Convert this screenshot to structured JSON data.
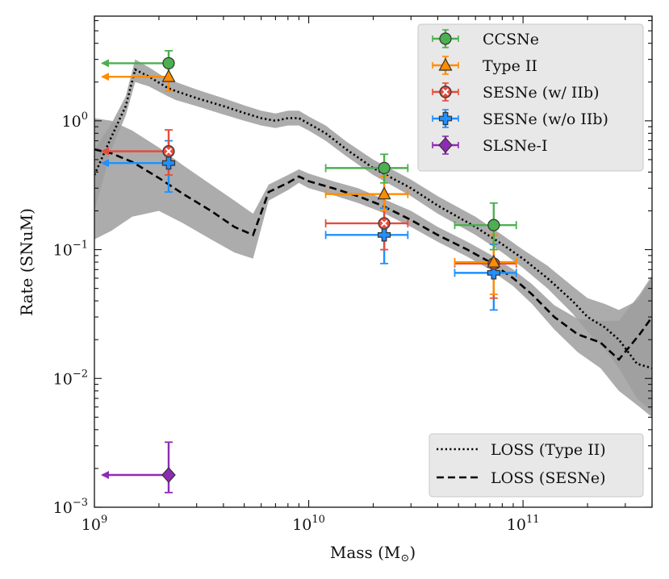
{
  "chart_data": {
    "type": "scatter",
    "xscale": "log",
    "yscale": "log",
    "xlim": [
      1000000000.0,
      400000000000.0
    ],
    "ylim": [
      0.001,
      6.5
    ],
    "xlabel": "Mass (M",
    "xlabel_sub": "⊙",
    "xlabel_end": ")",
    "ylabel": "Rate (SNuM)",
    "x_ticks": [
      {
        "value": 1000000000.0,
        "base": "10",
        "exp": "9"
      },
      {
        "value": 10000000000.0,
        "base": "10",
        "exp": "10"
      },
      {
        "value": 100000000000.0,
        "base": "10",
        "exp": "11"
      }
    ],
    "y_ticks": [
      {
        "value": 0.001,
        "base": "10",
        "exp": "−3"
      },
      {
        "value": 0.01,
        "base": "10",
        "exp": "−2"
      },
      {
        "value": 0.1,
        "base": "10",
        "exp": "−1"
      },
      {
        "value": 1,
        "base": "10",
        "exp": "0"
      }
    ],
    "series": [
      {
        "name": "CCSNe",
        "color": "#4caf50",
        "marker": "circle",
        "points": [
          {
            "x": 2220000000.0,
            "y": 2.8,
            "ylo": 2.2,
            "yhi": 3.5,
            "xlo": 1000000000.0,
            "xhi": 2220000000.0,
            "upper_limit_x": true
          },
          {
            "x": 22500000000.0,
            "y": 0.43,
            "ylo": 0.33,
            "yhi": 0.55,
            "xlo": 12000000000.0,
            "xhi": 29000000000.0
          },
          {
            "x": 73000000000.0,
            "y": 0.155,
            "ylo": 0.1,
            "yhi": 0.23,
            "xlo": 48000000000.0,
            "xhi": 93000000000.0
          }
        ]
      },
      {
        "name": "Type II",
        "color": "#ff8c00",
        "marker": "triangle",
        "points": [
          {
            "x": 2220000000.0,
            "y": 2.2,
            "ylo": 1.7,
            "yhi": 2.9,
            "xlo": 1000000000.0,
            "xhi": 2220000000.0,
            "upper_limit_x": true
          },
          {
            "x": 22500000000.0,
            "y": 0.27,
            "ylo": 0.2,
            "yhi": 0.37,
            "xlo": 12000000000.0,
            "xhi": 29000000000.0
          },
          {
            "x": 73000000000.0,
            "y": 0.08,
            "ylo": 0.045,
            "yhi": 0.13,
            "xlo": 48000000000.0,
            "xhi": 93000000000.0
          }
        ]
      },
      {
        "name": "SESNe (w/ IIb)",
        "color": "#e74c3c",
        "marker": "x",
        "points": [
          {
            "x": 2220000000.0,
            "y": 0.58,
            "ylo": 0.38,
            "yhi": 0.85,
            "xlo": 1000000000.0,
            "xhi": 2220000000.0,
            "upper_limit_x": true
          },
          {
            "x": 22500000000.0,
            "y": 0.16,
            "ylo": 0.1,
            "yhi": 0.25,
            "xlo": 12000000000.0,
            "xhi": 29000000000.0
          },
          {
            "x": 73000000000.0,
            "y": 0.078,
            "ylo": 0.042,
            "yhi": 0.13,
            "xlo": 48000000000.0,
            "xhi": 93000000000.0
          }
        ]
      },
      {
        "name": "SESNe (w/o IIb)",
        "color": "#1e90ff",
        "marker": "plus",
        "points": [
          {
            "x": 2220000000.0,
            "y": 0.47,
            "ylo": 0.28,
            "yhi": 0.7,
            "xlo": 1000000000.0,
            "xhi": 2220000000.0,
            "upper_limit_x": true
          },
          {
            "x": 22500000000.0,
            "y": 0.13,
            "ylo": 0.078,
            "yhi": 0.21,
            "xlo": 12000000000.0,
            "xhi": 29000000000.0
          },
          {
            "x": 73000000000.0,
            "y": 0.066,
            "ylo": 0.034,
            "yhi": 0.11,
            "xlo": 48000000000.0,
            "xhi": 93000000000.0
          }
        ]
      },
      {
        "name": "SLSNe-I",
        "color": "#8e2bb5",
        "marker": "diamond",
        "points": [
          {
            "x": 2220000000.0,
            "y": 0.00178,
            "ylo": 0.0013,
            "yhi": 0.0032,
            "xlo": 1000000000.0,
            "xhi": 2220000000.0,
            "upper_limit_x": true
          }
        ]
      }
    ],
    "loss_curves": [
      {
        "name": "LOSS (Type II)",
        "style": "dotted",
        "x": [
          1000000000.0,
          1200000000.0,
          1400000000.0,
          1550000000.0,
          1800000000.0,
          2200000000.0,
          2400000000.0,
          3000000000.0,
          4000000000.0,
          5000000000.0,
          6000000000.0,
          7000000000.0,
          8000000000.0,
          9000000000.0,
          10000000000.0,
          12000000000.0,
          15000000000.0,
          20000000000.0,
          30000000000.0,
          40000000000.0,
          60000000000.0,
          80000000000.0,
          100000000000.0,
          130000000000.0,
          170000000000.0,
          200000000000.0,
          240000000000.0,
          280000000000.0,
          340000000000.0,
          400000000000.0
        ],
        "y": [
          0.38,
          0.75,
          1.3,
          2.5,
          2.2,
          1.8,
          1.7,
          1.5,
          1.3,
          1.15,
          1.05,
          1.0,
          1.05,
          1.05,
          0.95,
          0.8,
          0.6,
          0.43,
          0.3,
          0.22,
          0.15,
          0.11,
          0.085,
          0.06,
          0.04,
          0.03,
          0.025,
          0.02,
          0.013,
          0.012
        ],
        "ylo": [
          0.2,
          0.6,
          1.1,
          2.0,
          1.85,
          1.55,
          1.45,
          1.3,
          1.12,
          1.0,
          0.92,
          0.88,
          0.92,
          0.92,
          0.84,
          0.7,
          0.53,
          0.38,
          0.26,
          0.19,
          0.13,
          0.095,
          0.072,
          0.05,
          0.032,
          0.023,
          0.017,
          0.012,
          0.007,
          0.0055
        ],
        "yhi": [
          0.6,
          0.95,
          1.55,
          3.0,
          2.6,
          2.1,
          2.0,
          1.75,
          1.5,
          1.32,
          1.2,
          1.14,
          1.2,
          1.2,
          1.08,
          0.92,
          0.69,
          0.5,
          0.35,
          0.26,
          0.18,
          0.13,
          0.1,
          0.075,
          0.052,
          0.042,
          0.038,
          0.034,
          0.04,
          0.06
        ]
      },
      {
        "name": "LOSS (SESNe)",
        "style": "dashed",
        "x": [
          1000000000.0,
          1200000000.0,
          1500000000.0,
          2000000000.0,
          2600000000.0,
          3500000000.0,
          4500000000.0,
          5500000000.0,
          6500000000.0,
          8000000000.0,
          9000000000.0,
          10000000000.0,
          13000000000.0,
          17000000000.0,
          22000000000.0,
          30000000000.0,
          40000000000.0,
          55000000000.0,
          70000000000.0,
          90000000000.0,
          110000000000.0,
          140000000000.0,
          180000000000.0,
          230000000000.0,
          280000000000.0,
          350000000000.0,
          400000000000.0
        ],
        "y": [
          0.6,
          0.56,
          0.48,
          0.36,
          0.27,
          0.2,
          0.15,
          0.13,
          0.28,
          0.33,
          0.37,
          0.34,
          0.3,
          0.26,
          0.22,
          0.17,
          0.13,
          0.1,
          0.08,
          0.06,
          0.045,
          0.03,
          0.022,
          0.019,
          0.014,
          0.022,
          0.03
        ],
        "ylo": [
          0.12,
          0.14,
          0.18,
          0.2,
          0.16,
          0.12,
          0.095,
          0.085,
          0.24,
          0.29,
          0.33,
          0.3,
          0.265,
          0.23,
          0.195,
          0.15,
          0.115,
          0.088,
          0.07,
          0.052,
          0.038,
          0.024,
          0.016,
          0.012,
          0.008,
          0.006,
          0.005
        ],
        "yhi": [
          1.05,
          1.0,
          0.84,
          0.62,
          0.45,
          0.32,
          0.24,
          0.19,
          0.32,
          0.38,
          0.42,
          0.39,
          0.34,
          0.3,
          0.25,
          0.2,
          0.15,
          0.115,
          0.092,
          0.07,
          0.054,
          0.037,
          0.029,
          0.028,
          0.028,
          0.045,
          0.063
        ]
      }
    ],
    "legend_points": {
      "position": "top-right",
      "entries": [
        "CCSNe",
        "Type II",
        "SESNe (w/ IIb)",
        "SESNe (w/o IIb)",
        "SLSNe-I"
      ]
    },
    "legend_lines": {
      "position": "bottom-right",
      "entries": [
        "LOSS (Type II)",
        "LOSS (SESNe)"
      ]
    }
  }
}
